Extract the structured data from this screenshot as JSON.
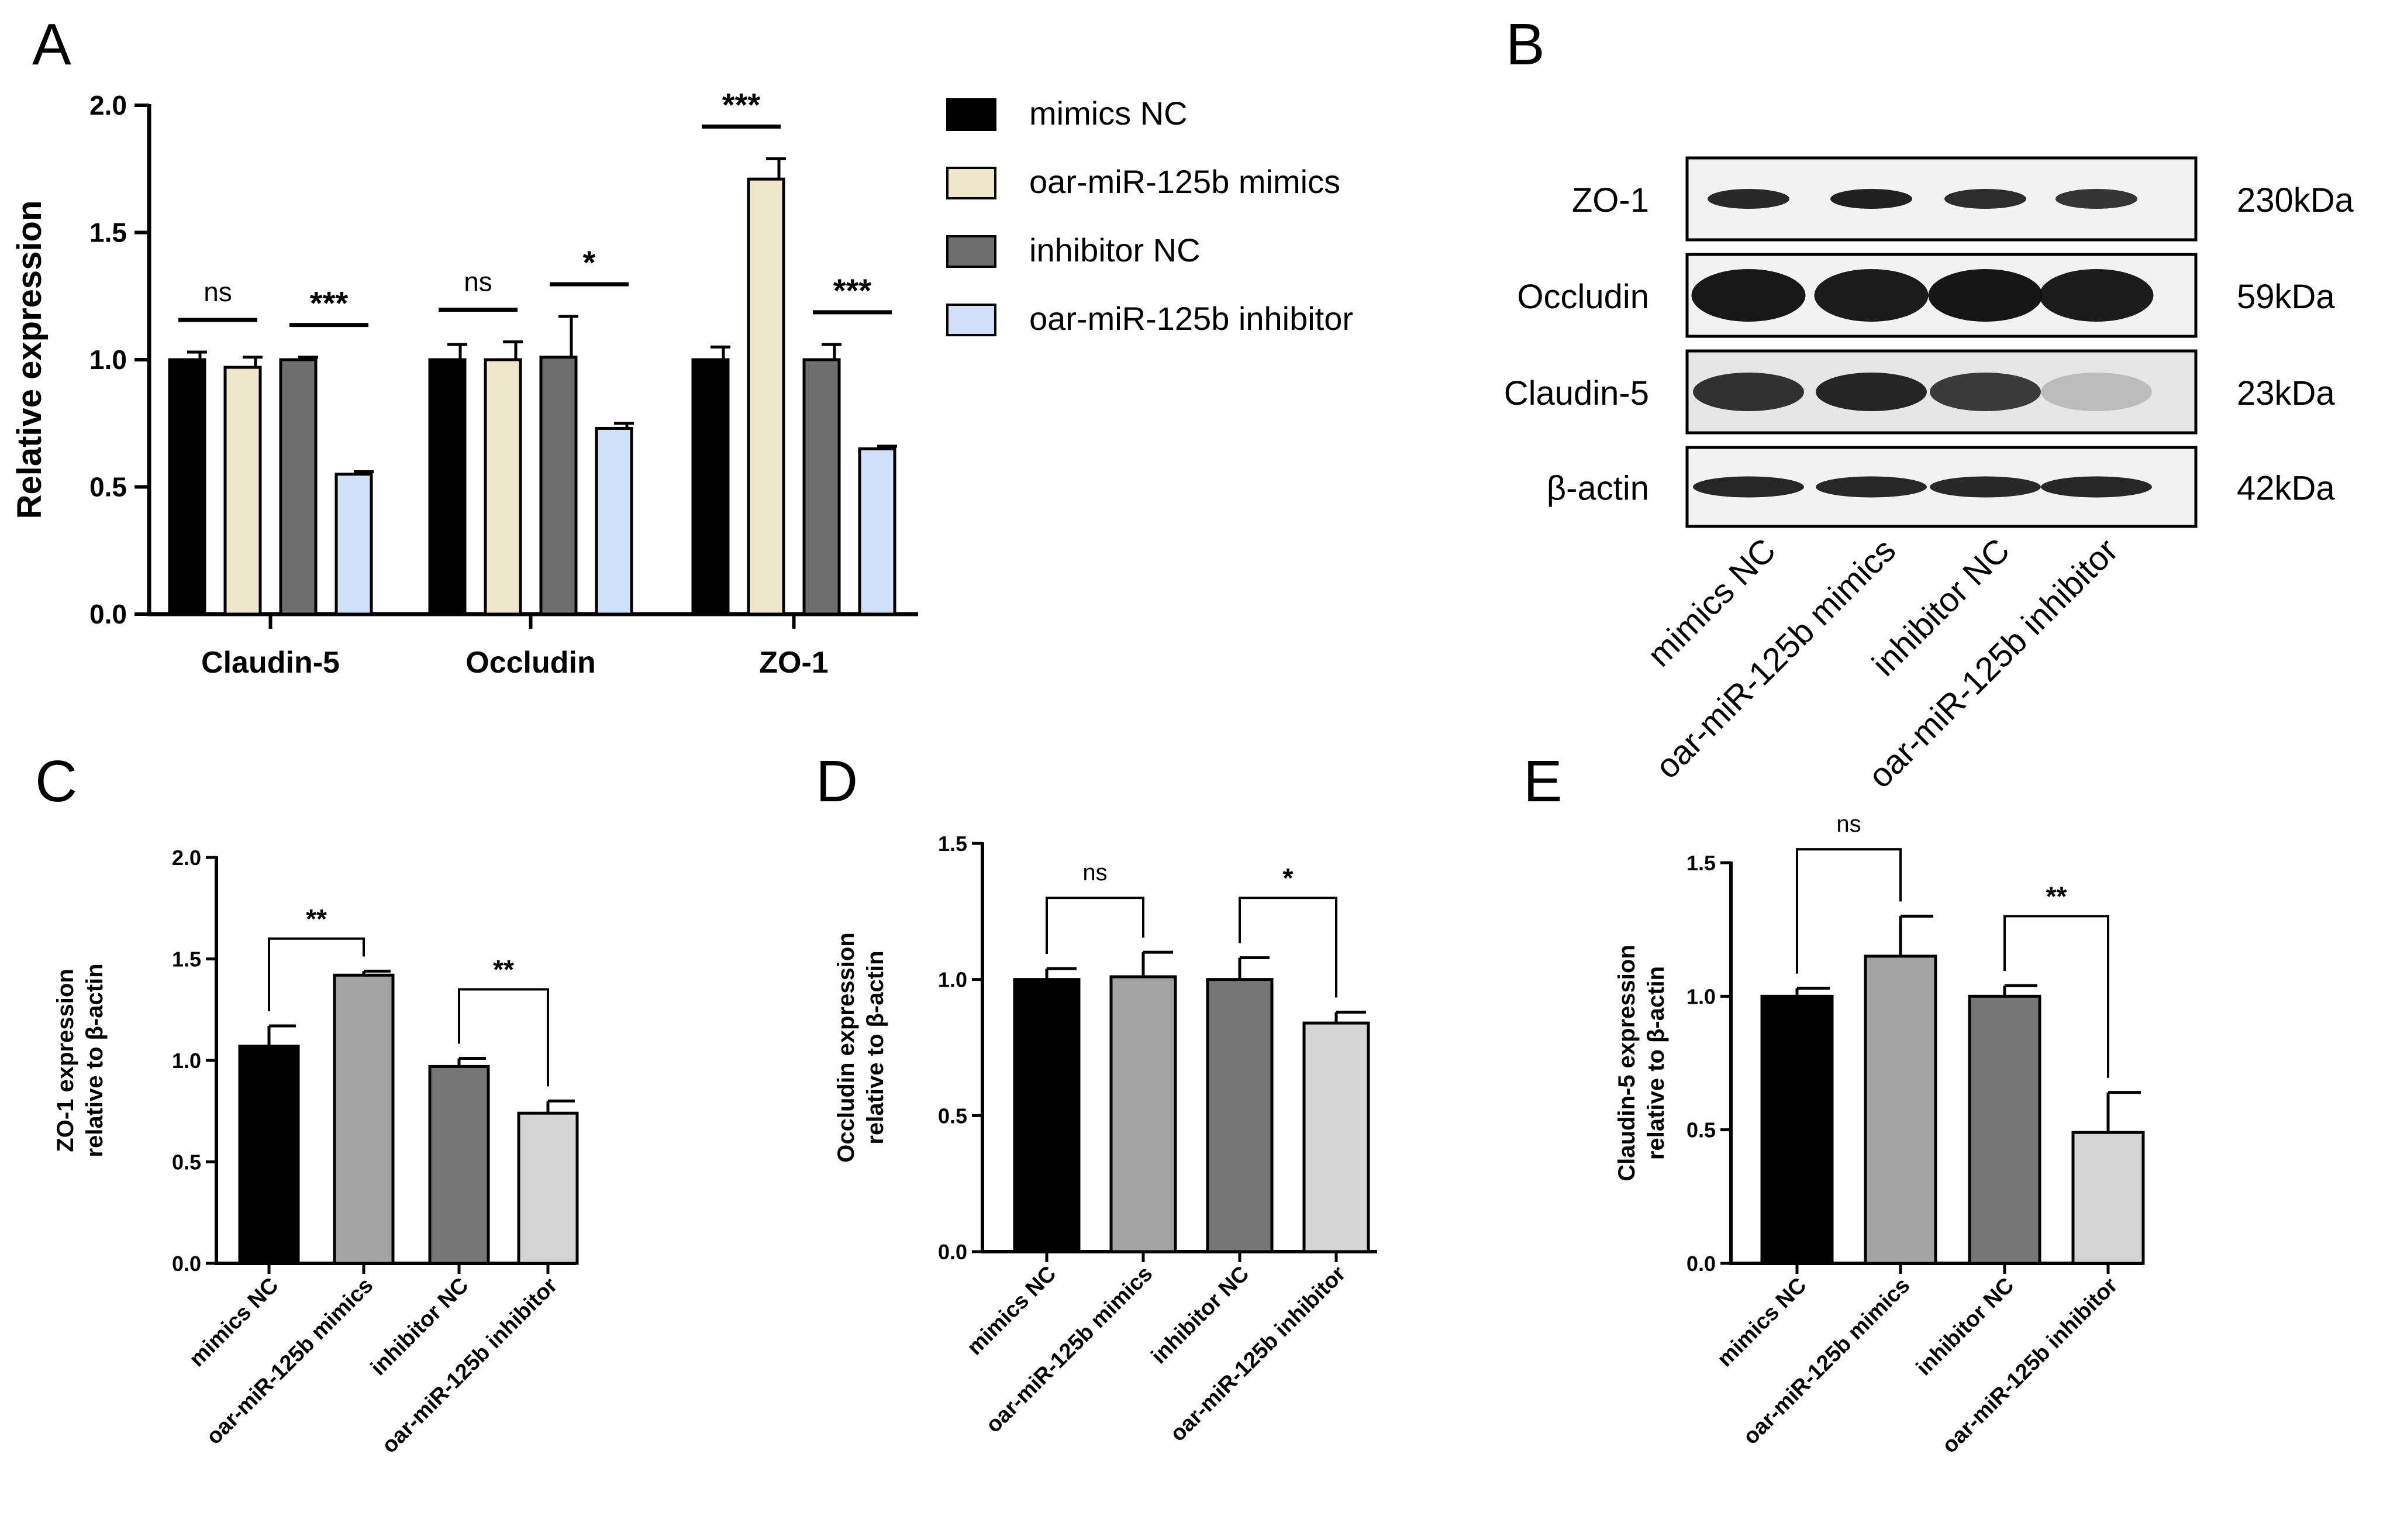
{
  "panels": {
    "A": "A",
    "B": "B",
    "C": "C",
    "D": "D",
    "E": "E"
  },
  "legend": [
    "mimics NC",
    "oar-miR-125b mimics",
    "inhibitor NC",
    "oar-miR-125b inhibitor"
  ],
  "colors": {
    "A": [
      "#000000",
      "#efe8cc",
      "#6e6e6e",
      "#cfe0f8"
    ],
    "CDE": [
      "#000000",
      "#a3a3a3",
      "#767676",
      "#d4d4d4"
    ],
    "axis": "#000000",
    "blot_frame": "#000000"
  },
  "blot": {
    "bands": [
      {
        "protein": "ZO-1",
        "size": "230kDa"
      },
      {
        "protein": "Occludin",
        "size": "59kDa"
      },
      {
        "protein": "Claudin-5",
        "size": "23kDa"
      },
      {
        "protein": "β-actin",
        "size": "42kDa"
      }
    ],
    "lanes": [
      "mimics NC",
      "oar-miR-125b mimics",
      "inhibitor NC",
      "oar-miR-125b inhibitor"
    ]
  },
  "chart_data": [
    {
      "panel": "A",
      "type": "bar",
      "title": "",
      "ylabel": "Relative expression",
      "xlabel": "",
      "ylim": [
        0,
        2.0
      ],
      "yticks": [
        "0.0",
        "0.5",
        "1.0",
        "1.5",
        "2.0"
      ],
      "categories": [
        "Claudin-5",
        "Occludin",
        "ZO-1"
      ],
      "series": [
        {
          "name": "mimics NC",
          "values": [
            1.0,
            1.0,
            1.0
          ],
          "errors": [
            0.03,
            0.06,
            0.05
          ]
        },
        {
          "name": "oar-miR-125b mimics",
          "values": [
            0.97,
            1.0,
            1.71
          ],
          "errors": [
            0.04,
            0.07,
            0.08
          ]
        },
        {
          "name": "inhibitor NC",
          "values": [
            1.0,
            1.01,
            1.0
          ],
          "errors": [
            0.01,
            0.16,
            0.06
          ]
        },
        {
          "name": "oar-miR-125b inhibitor",
          "values": [
            0.55,
            0.73,
            0.65
          ],
          "errors": [
            0.01,
            0.02,
            0.01
          ]
        }
      ],
      "significance": [
        {
          "category": "Claudin-5",
          "pair": [
            0,
            1
          ],
          "label": "ns"
        },
        {
          "category": "Claudin-5",
          "pair": [
            2,
            3
          ],
          "label": "***"
        },
        {
          "category": "Occludin",
          "pair": [
            0,
            1
          ],
          "label": "ns"
        },
        {
          "category": "Occludin",
          "pair": [
            2,
            3
          ],
          "label": "*"
        },
        {
          "category": "ZO-1",
          "pair": [
            0,
            1
          ],
          "label": "***"
        },
        {
          "category": "ZO-1",
          "pair": [
            2,
            3
          ],
          "label": "***"
        }
      ],
      "legend_position": "right"
    },
    {
      "panel": "C",
      "type": "bar",
      "ylabel": [
        "ZO-1 expression",
        "relative to β-actin"
      ],
      "ylim": [
        0,
        2.0
      ],
      "yticks": [
        "0.0",
        "0.5",
        "1.0",
        "1.5",
        "2.0"
      ],
      "categories": [
        "mimics NC",
        "oar-miR-125b mimics",
        "inhibitor NC",
        "oar-miR-125b inhibitor"
      ],
      "values": [
        1.07,
        1.42,
        0.97,
        0.74
      ],
      "errors": [
        0.1,
        0.02,
        0.04,
        0.06
      ],
      "significance": [
        {
          "pair": [
            0,
            1
          ],
          "label": "**",
          "y": 1.6
        },
        {
          "pair": [
            2,
            3
          ],
          "label": "**",
          "y": 1.35
        }
      ]
    },
    {
      "panel": "D",
      "type": "bar",
      "ylabel": [
        "Occludin expression",
        "relative to β-actin"
      ],
      "ylim": [
        0,
        1.5
      ],
      "yticks": [
        "0.0",
        "0.5",
        "1.0",
        "1.5"
      ],
      "categories": [
        "mimics NC",
        "oar-miR-125b mimics",
        "inhibitor NC",
        "oar-miR-125b inhibitor"
      ],
      "values": [
        1.0,
        1.01,
        1.0,
        0.84
      ],
      "errors": [
        0.04,
        0.09,
        0.08,
        0.04
      ],
      "significance": [
        {
          "pair": [
            0,
            1
          ],
          "label": "ns",
          "y": 1.3
        },
        {
          "pair": [
            2,
            3
          ],
          "label": "*",
          "y": 1.3
        }
      ]
    },
    {
      "panel": "E",
      "type": "bar",
      "ylabel": [
        "Claudin-5 expression",
        "relative to β-actin"
      ],
      "ylim": [
        0,
        1.5
      ],
      "yticks": [
        "0.0",
        "0.5",
        "1.0",
        "1.5"
      ],
      "categories": [
        "mimics NC",
        "oar-miR-125b mimics",
        "inhibitor NC",
        "oar-miR-125b inhibitor"
      ],
      "values": [
        1.0,
        1.15,
        1.0,
        0.49
      ],
      "errors": [
        0.03,
        0.15,
        0.04,
        0.15
      ],
      "significance": [
        {
          "pair": [
            0,
            1
          ],
          "label": "ns",
          "y": 1.55
        },
        {
          "pair": [
            2,
            3
          ],
          "label": "**",
          "y": 1.3
        }
      ]
    }
  ]
}
